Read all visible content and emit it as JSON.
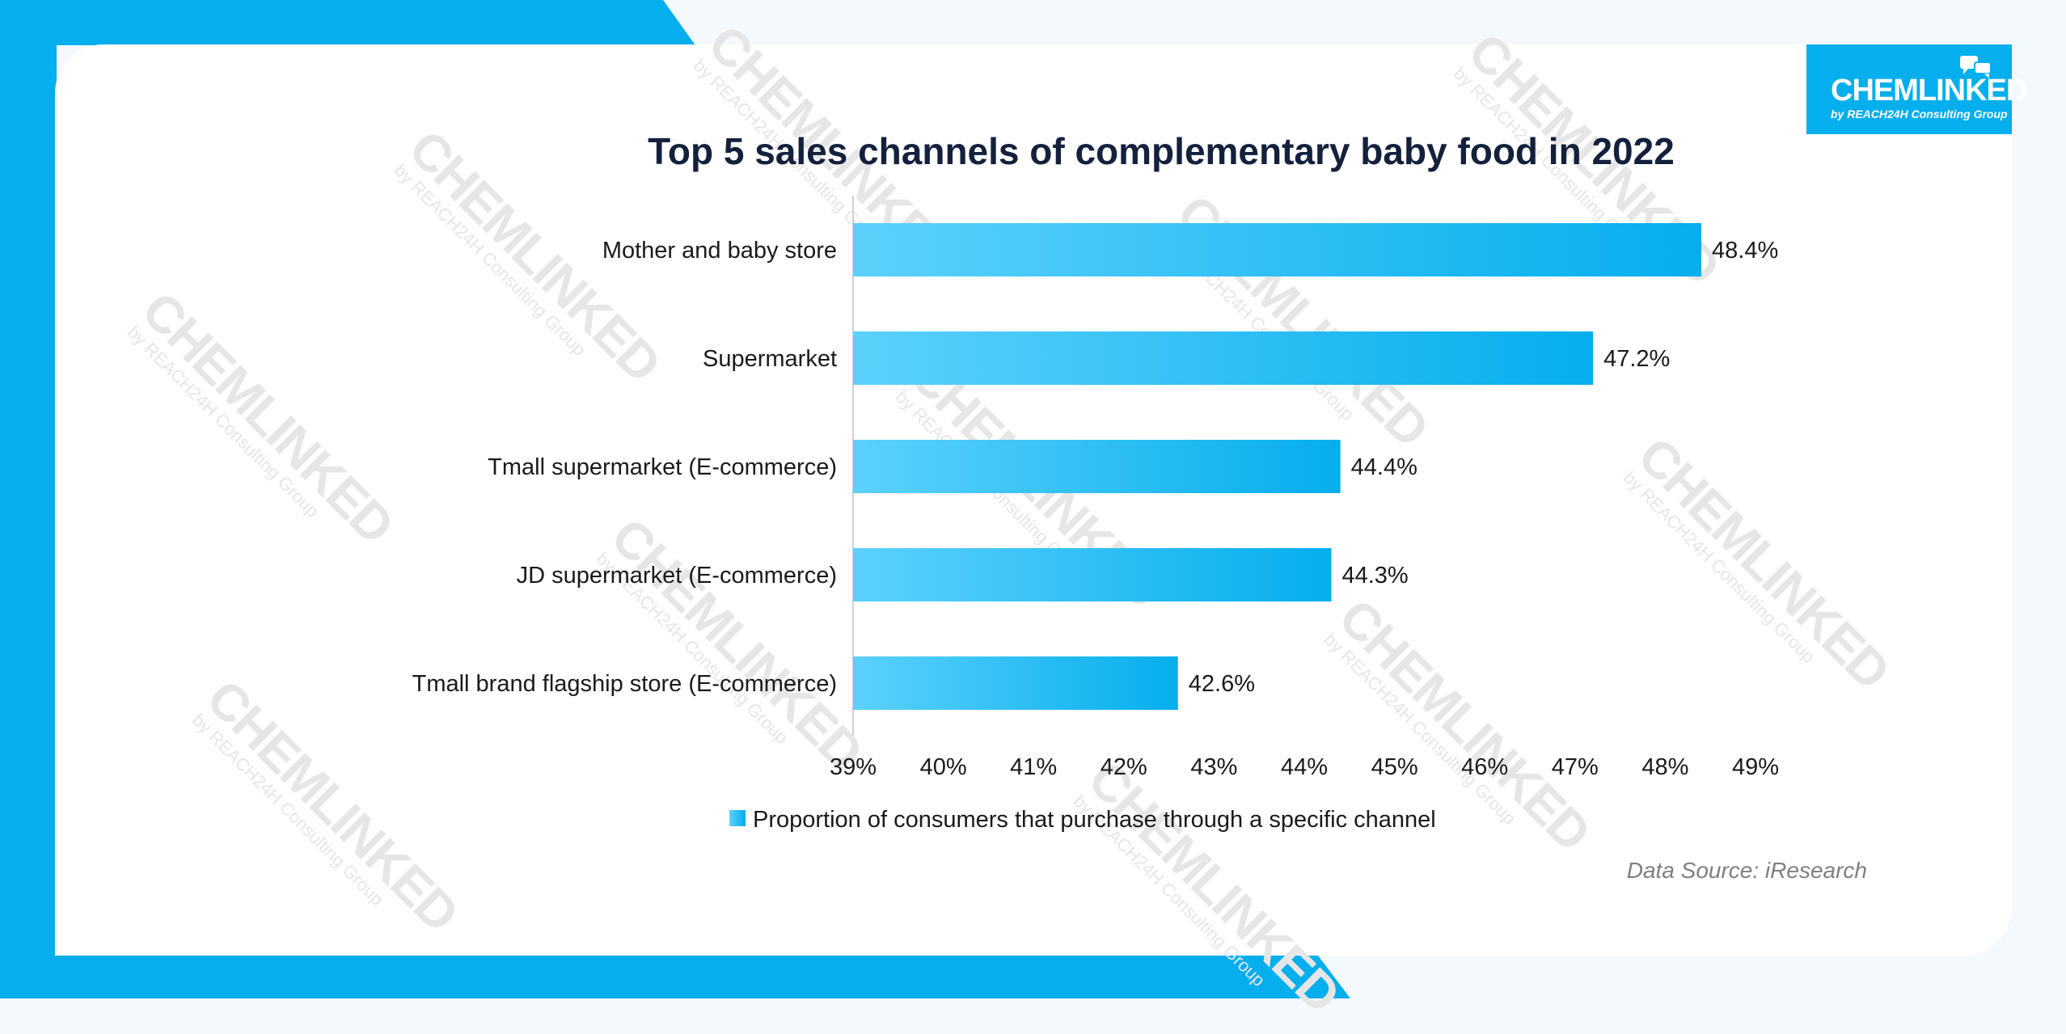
{
  "brand": {
    "name": "CHEMLINKED",
    "sub": "by REACH24H Consulting Group",
    "colors": {
      "primary": "#05aeed",
      "card": "#ffffff",
      "background": "#f4f9fd"
    }
  },
  "watermark": {
    "text": "CHEMLINKED",
    "sub": "by REACH24H Consulting Group"
  },
  "chart_data": {
    "type": "bar",
    "orientation": "horizontal",
    "title": "Top 5 sales channels of complementary baby food in 2022",
    "categories": [
      "Mother and baby store",
      "Supermarket",
      "Tmall supermarket (E-commerce)",
      "JD supermarket (E-commerce)",
      "Tmall brand flagship store (E-commerce)"
    ],
    "series": [
      {
        "name": "Proportion of consumers that purchase through a specific channel",
        "values": [
          48.4,
          47.2,
          44.4,
          44.3,
          42.6
        ],
        "data_labels": [
          "48.4%",
          "47.2%",
          "44.4%",
          "44.3%",
          "42.6%"
        ],
        "color_start": "#5cd1fb",
        "color_end": "#05aeed"
      }
    ],
    "xlim": [
      39,
      49
    ],
    "xticks": [
      39,
      40,
      41,
      42,
      43,
      44,
      45,
      46,
      47,
      48,
      49
    ],
    "xtick_labels": [
      "39%",
      "40%",
      "41%",
      "42%",
      "43%",
      "44%",
      "45%",
      "46%",
      "47%",
      "48%",
      "49%"
    ],
    "xlabel": "",
    "ylabel": "",
    "grid": false,
    "legend": {
      "position": "bottom",
      "labels": [
        "Proportion of consumers that purchase through a specific channel"
      ]
    },
    "source": "Data Source: iResearch"
  }
}
